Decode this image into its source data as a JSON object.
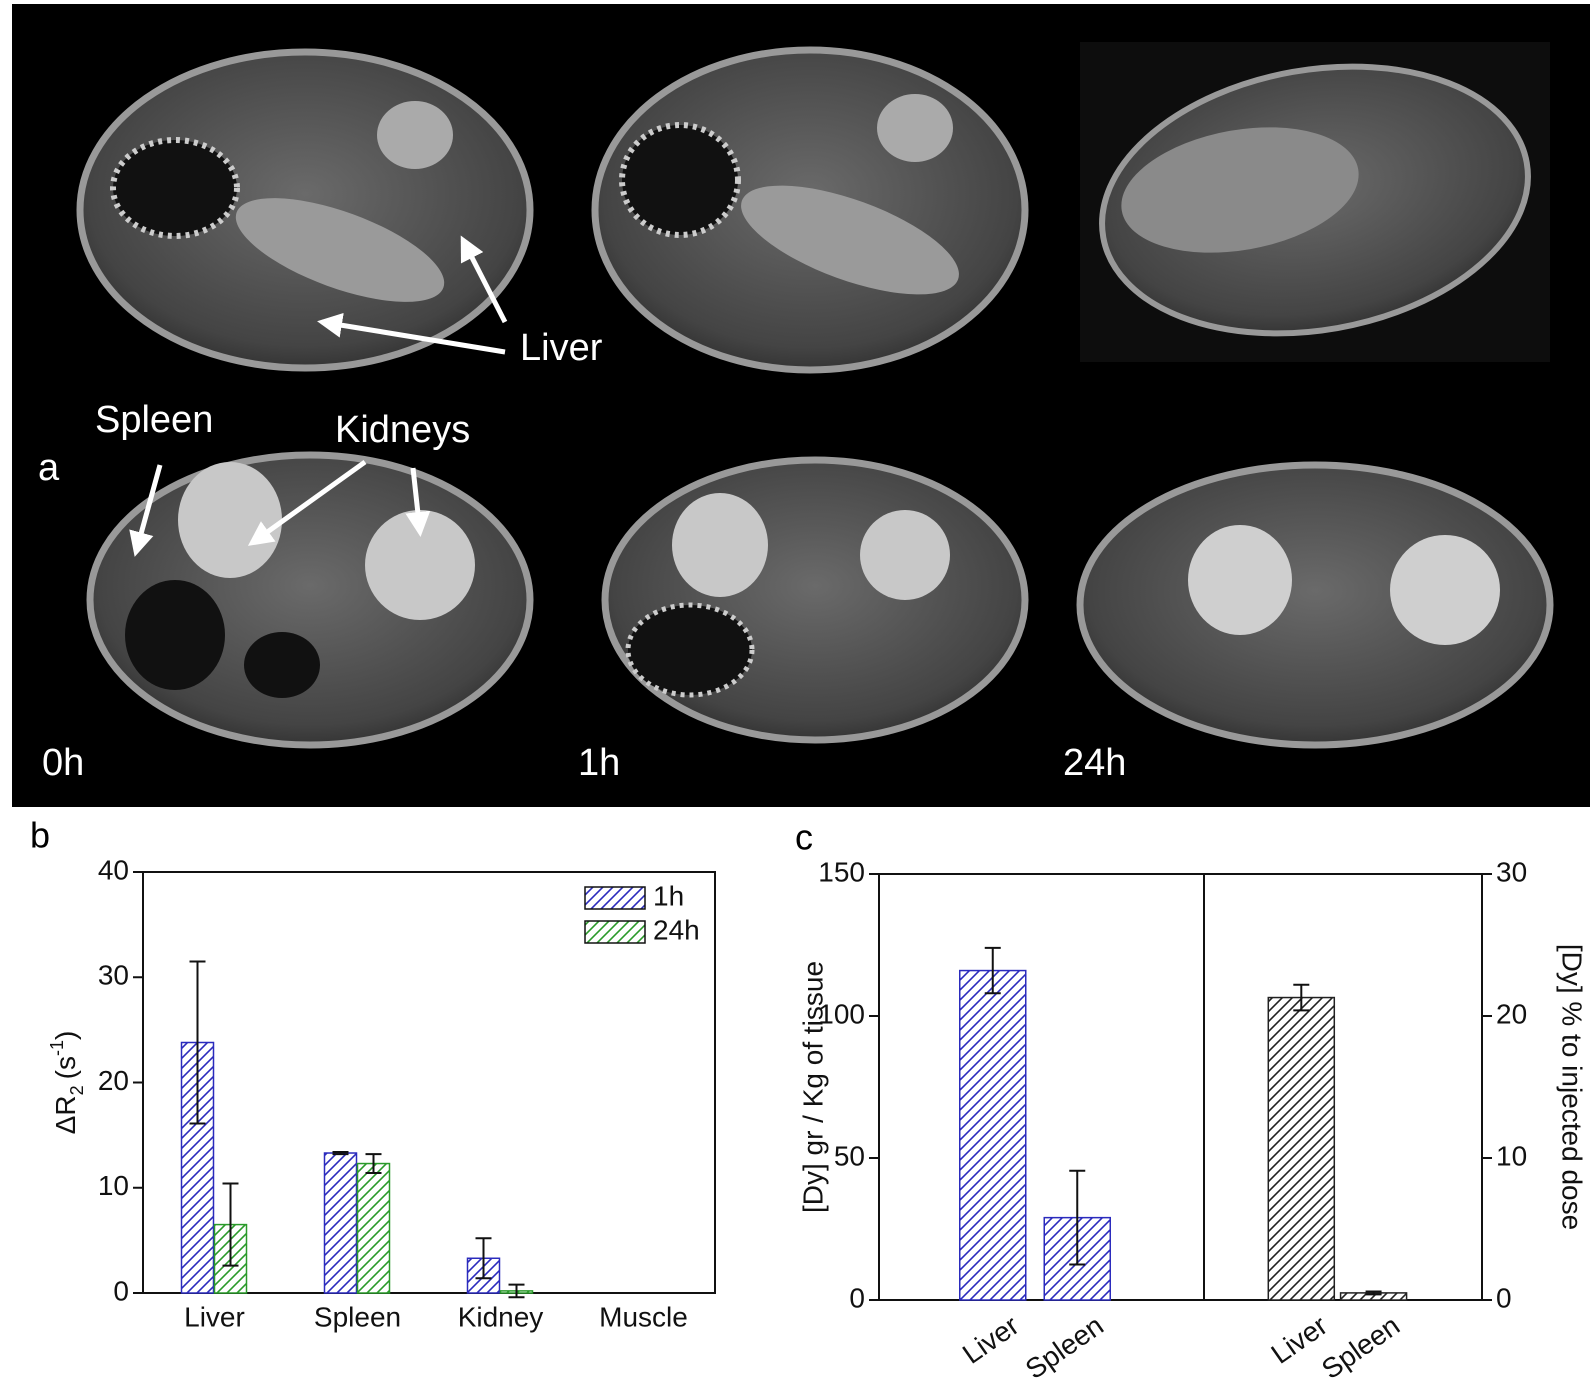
{
  "panel_a": {
    "label": "a",
    "annotations": {
      "liver": "Liver",
      "spleen": "Spleen",
      "kidneys": "Kidneys"
    },
    "time_labels": [
      "0h",
      "1h",
      "24h"
    ]
  },
  "chart_data": [
    {
      "type": "bar",
      "panel": "b",
      "categories": [
        "Liver",
        "Spleen",
        "Kidney",
        "Muscle"
      ],
      "ylabel": [
        "ΔR",
        "2",
        "(s",
        "-1",
        ")"
      ],
      "ylim": [
        0,
        40
      ],
      "yticks": [
        0,
        10,
        20,
        30,
        40
      ],
      "legend": "upper right",
      "hatch": true,
      "series": [
        {
          "name": "1h",
          "color": "#2b2bbd",
          "values": [
            23.8,
            13.3,
            3.3,
            null
          ],
          "errors": [
            7.7,
            0.1,
            1.9,
            null
          ]
        },
        {
          "name": "24h",
          "color": "#2a9a2a",
          "values": [
            6.5,
            12.3,
            0.2,
            null
          ],
          "errors": [
            3.9,
            0.9,
            0.6,
            null
          ]
        }
      ]
    },
    {
      "type": "bar",
      "panel": "c",
      "ylabel": "[Dy] gr / Kg of tissue",
      "y2label": "[Dy] % to injected dose",
      "ylim": [
        0,
        150
      ],
      "yticks": [
        0,
        50,
        100,
        150
      ],
      "y2lim": [
        0,
        30
      ],
      "y2ticks": [
        0,
        10,
        20,
        30
      ],
      "hatch": true,
      "groups": [
        {
          "categories": [
            "Liver",
            "Spleen"
          ],
          "color": "#2b2bbd",
          "values": [
            116,
            29
          ],
          "errors": [
            8,
            16.5
          ]
        },
        {
          "categories": [
            "Liver",
            "Spleen"
          ],
          "color": "#222222",
          "axis": "y2",
          "values": [
            21.3,
            0.5
          ],
          "errors": [
            0.9,
            0.1
          ]
        }
      ]
    }
  ]
}
